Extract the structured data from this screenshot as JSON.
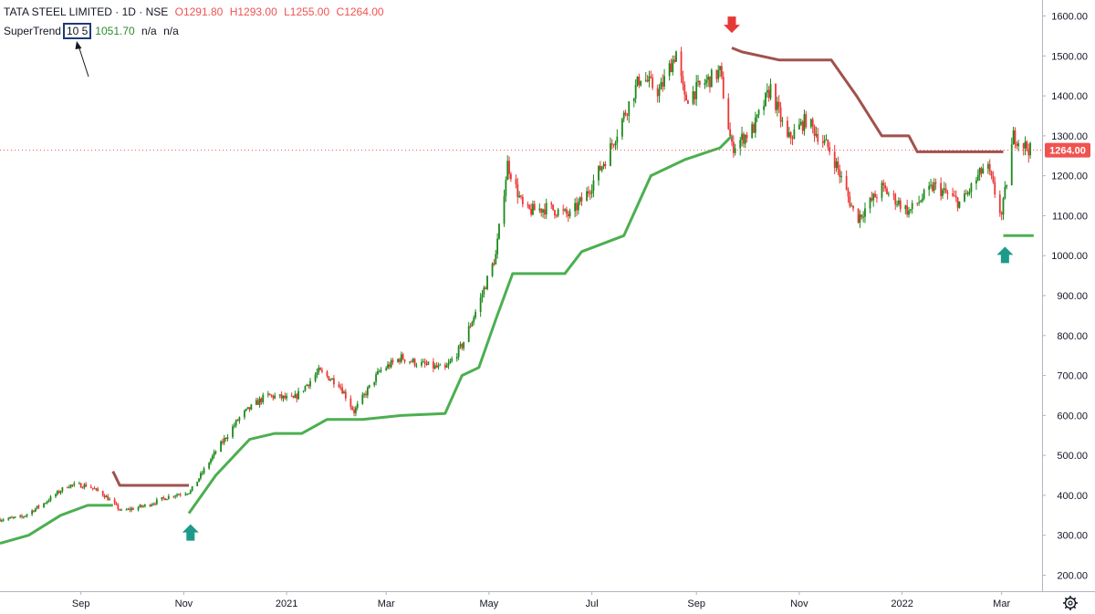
{
  "header": {
    "symbol": "TATA STEEL LIMITED · 1D · NSE",
    "open_label": "O",
    "open": "1291.80",
    "high_label": "H",
    "high": "1293.00",
    "low_label": "L",
    "low": "1255.00",
    "close_label": "C",
    "close": "1264.00"
  },
  "indicator": {
    "name": "SuperTrend",
    "params": "10 5",
    "value": "1051.70",
    "extra1": "n/a",
    "extra2": "n/a"
  },
  "price_badge": "1264.00",
  "colors": {
    "up": "#26a69a",
    "candle_up": "#1b8a1b",
    "candle_down": "#ef3535",
    "supertrend_up": "#4caf50",
    "supertrend_down": "#a0524d",
    "arrow_buy": "#1e9a8a",
    "arrow_sell": "#e53935",
    "badge": "#ef5350"
  },
  "chart_data": {
    "type": "candlestick",
    "title": "TATA STEEL LIMITED · 1D · NSE",
    "y_ticks": [
      "200.00",
      "300.00",
      "400.00",
      "500.00",
      "600.00",
      "700.00",
      "800.00",
      "900.00",
      "1000.00",
      "1100.00",
      "1200.00",
      "1300.00",
      "1400.00",
      "1500.00",
      "1600.00"
    ],
    "ylim": [
      160,
      1640
    ],
    "x_ticks": [
      {
        "label": "Sep",
        "date": "2020-09-01"
      },
      {
        "label": "Nov",
        "date": "2020-11-01"
      },
      {
        "label": "2021",
        "date": "2021-01-01"
      },
      {
        "label": "Mar",
        "date": "2021-03-01"
      },
      {
        "label": "May",
        "date": "2021-05-01"
      },
      {
        "label": "Jul",
        "date": "2021-07-01"
      },
      {
        "label": "Sep",
        "date": "2021-09-01"
      },
      {
        "label": "Nov",
        "date": "2021-11-01"
      },
      {
        "label": "2022",
        "date": "2022-01-01"
      },
      {
        "label": "Mar",
        "date": "2022-03-01"
      }
    ],
    "xlim": [
      "2020-07-15",
      "2022-03-25"
    ],
    "price_path": [
      [
        "2020-07-15",
        340
      ],
      [
        "2020-07-28",
        345
      ],
      [
        "2020-08-10",
        380
      ],
      [
        "2020-08-24",
        425
      ],
      [
        "2020-09-05",
        425
      ],
      [
        "2020-09-15",
        400
      ],
      [
        "2020-09-25",
        360
      ],
      [
        "2020-10-10",
        375
      ],
      [
        "2020-10-25",
        400
      ],
      [
        "2020-11-05",
        410
      ],
      [
        "2020-11-20",
        510
      ],
      [
        "2020-12-05",
        600
      ],
      [
        "2020-12-20",
        650
      ],
      [
        "2021-01-05",
        640
      ],
      [
        "2021-01-20",
        710
      ],
      [
        "2021-02-01",
        680
      ],
      [
        "2021-02-10",
        610
      ],
      [
        "2021-02-25",
        710
      ],
      [
        "2021-03-10",
        745
      ],
      [
        "2021-03-20",
        730
      ],
      [
        "2021-04-05",
        715
      ],
      [
        "2021-04-15",
        775
      ],
      [
        "2021-04-25",
        880
      ],
      [
        "2021-05-05",
        1000
      ],
      [
        "2021-05-12",
        1230
      ],
      [
        "2021-05-22",
        1110
      ],
      [
        "2021-06-05",
        1120
      ],
      [
        "2021-06-18",
        1100
      ],
      [
        "2021-06-28",
        1155
      ],
      [
        "2021-07-10",
        1250
      ],
      [
        "2021-07-20",
        1350
      ],
      [
        "2021-07-30",
        1450
      ],
      [
        "2021-08-10",
        1410
      ],
      [
        "2021-08-20",
        1510
      ],
      [
        "2021-08-25",
        1390
      ],
      [
        "2021-09-05",
        1430
      ],
      [
        "2021-09-15",
        1460
      ],
      [
        "2021-09-22",
        1270
      ],
      [
        "2021-10-05",
        1320
      ],
      [
        "2021-10-15",
        1420
      ],
      [
        "2021-10-25",
        1290
      ],
      [
        "2021-11-05",
        1340
      ],
      [
        "2021-11-20",
        1260
      ],
      [
        "2021-12-05",
        1090
      ],
      [
        "2021-12-20",
        1170
      ],
      [
        "2022-01-05",
        1110
      ],
      [
        "2022-01-20",
        1175
      ],
      [
        "2022-02-05",
        1130
      ],
      [
        "2022-02-20",
        1230
      ],
      [
        "2022-03-01",
        1100
      ],
      [
        "2022-03-08",
        1300
      ],
      [
        "2022-03-18",
        1264
      ]
    ],
    "supertrend": [
      {
        "trend": "up",
        "points": [
          [
            "2020-07-15",
            280
          ],
          [
            "2020-08-01",
            300
          ],
          [
            "2020-08-20",
            350
          ],
          [
            "2020-09-05",
            375
          ],
          [
            "2020-09-20",
            375
          ]
        ]
      },
      {
        "trend": "down",
        "points": [
          [
            "2020-09-20",
            460
          ],
          [
            "2020-09-24",
            425
          ],
          [
            "2020-11-04",
            425
          ]
        ]
      },
      {
        "trend": "up",
        "points": [
          [
            "2020-11-04",
            355
          ],
          [
            "2020-11-20",
            450
          ],
          [
            "2020-12-10",
            540
          ],
          [
            "2020-12-25",
            555
          ],
          [
            "2021-01-10",
            555
          ],
          [
            "2021-01-25",
            590
          ],
          [
            "2021-02-15",
            590
          ],
          [
            "2021-03-10",
            600
          ],
          [
            "2021-04-05",
            605
          ],
          [
            "2021-04-15",
            700
          ],
          [
            "2021-04-25",
            720
          ],
          [
            "2021-05-05",
            840
          ],
          [
            "2021-05-15",
            955
          ],
          [
            "2021-06-15",
            955
          ],
          [
            "2021-06-25",
            1010
          ],
          [
            "2021-07-20",
            1050
          ],
          [
            "2021-08-05",
            1200
          ],
          [
            "2021-08-25",
            1240
          ],
          [
            "2021-09-15",
            1270
          ],
          [
            "2021-09-22",
            1300
          ]
        ]
      },
      {
        "trend": "down",
        "points": [
          [
            "2021-09-22",
            1520
          ],
          [
            "2021-09-28",
            1510
          ],
          [
            "2021-10-20",
            1490
          ],
          [
            "2021-11-20",
            1490
          ],
          [
            "2021-12-05",
            1400
          ],
          [
            "2021-12-20",
            1300
          ],
          [
            "2022-01-05",
            1300
          ],
          [
            "2022-01-10",
            1260
          ],
          [
            "2022-03-02",
            1260
          ]
        ]
      },
      {
        "trend": "up",
        "points": [
          [
            "2022-03-02",
            1050
          ],
          [
            "2022-03-20",
            1050
          ]
        ]
      }
    ],
    "markers": [
      {
        "type": "buy",
        "date": "2020-11-05",
        "value": 355
      },
      {
        "type": "sell",
        "date": "2021-09-22",
        "value": 1530
      },
      {
        "type": "buy",
        "date": "2022-03-03",
        "value": 1050
      }
    ],
    "last_price": 1264.0
  }
}
